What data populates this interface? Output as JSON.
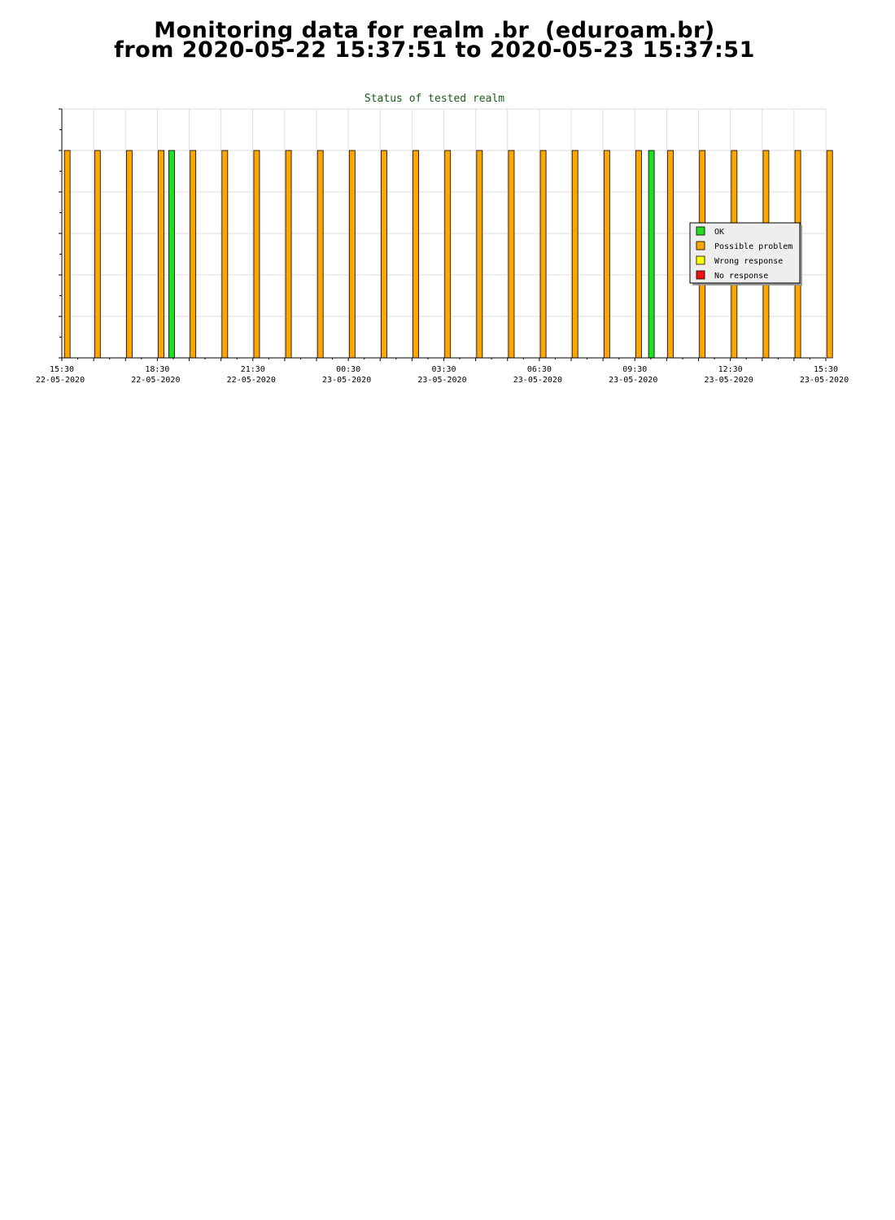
{
  "header": {
    "line1": "Monitoring data for realm .br  (eduroam.br)",
    "line2": "from 2020-05-22 15:37:51 to 2020-05-23 15:37:51"
  },
  "chart_data": {
    "type": "bar",
    "title": "Status of tested realm",
    "xlabel": "",
    "ylabel": "",
    "x_range_hours": [
      0,
      24
    ],
    "ylim": [
      0,
      6
    ],
    "grid": true,
    "legend_placement": "right",
    "x_ticks": [
      {
        "time": "15:30",
        "date": "22-05-2020",
        "h": 0
      },
      {
        "time": "18:30",
        "date": "22-05-2020",
        "h": 3
      },
      {
        "time": "21:30",
        "date": "22-05-2020",
        "h": 6
      },
      {
        "time": "00:30",
        "date": "23-05-2020",
        "h": 9
      },
      {
        "time": "03:30",
        "date": "23-05-2020",
        "h": 12
      },
      {
        "time": "06:30",
        "date": "23-05-2020",
        "h": 15
      },
      {
        "time": "09:30",
        "date": "23-05-2020",
        "h": 18
      },
      {
        "time": "12:30",
        "date": "23-05-2020",
        "h": 21
      },
      {
        "time": "15:30",
        "date": "23-05-2020",
        "h": 24
      }
    ],
    "series": [
      {
        "name": "OK",
        "color": "#22dd22"
      },
      {
        "name": "Possible problem",
        "color": "#ffa500"
      },
      {
        "name": "Wrong response",
        "color": "#ffff00"
      },
      {
        "name": "No response",
        "color": "#ee1111"
      }
    ],
    "points": [
      {
        "h": 0.17,
        "status": "Possible problem",
        "value": 5
      },
      {
        "h": 1.12,
        "status": "Possible problem",
        "value": 5
      },
      {
        "h": 2.12,
        "status": "Possible problem",
        "value": 5
      },
      {
        "h": 3.12,
        "status": "Possible problem",
        "value": 5
      },
      {
        "h": 3.45,
        "status": "OK",
        "value": 5
      },
      {
        "h": 4.12,
        "status": "Possible problem",
        "value": 5
      },
      {
        "h": 5.12,
        "status": "Possible problem",
        "value": 5
      },
      {
        "h": 6.12,
        "status": "Possible problem",
        "value": 5
      },
      {
        "h": 7.12,
        "status": "Possible problem",
        "value": 5
      },
      {
        "h": 8.12,
        "status": "Possible problem",
        "value": 5
      },
      {
        "h": 9.12,
        "status": "Possible problem",
        "value": 5
      },
      {
        "h": 10.12,
        "status": "Possible problem",
        "value": 5
      },
      {
        "h": 11.12,
        "status": "Possible problem",
        "value": 5
      },
      {
        "h": 12.12,
        "status": "Possible problem",
        "value": 5
      },
      {
        "h": 13.12,
        "status": "Possible problem",
        "value": 5
      },
      {
        "h": 14.12,
        "status": "Possible problem",
        "value": 5
      },
      {
        "h": 15.12,
        "status": "Possible problem",
        "value": 5
      },
      {
        "h": 16.12,
        "status": "Possible problem",
        "value": 5
      },
      {
        "h": 17.12,
        "status": "Possible problem",
        "value": 5
      },
      {
        "h": 18.12,
        "status": "Possible problem",
        "value": 5
      },
      {
        "h": 18.52,
        "status": "OK",
        "value": 5
      },
      {
        "h": 19.12,
        "status": "Possible problem",
        "value": 5
      },
      {
        "h": 20.12,
        "status": "Possible problem",
        "value": 5
      },
      {
        "h": 21.12,
        "status": "Possible problem",
        "value": 5
      },
      {
        "h": 22.12,
        "status": "Possible problem",
        "value": 5
      },
      {
        "h": 23.12,
        "status": "Possible problem",
        "value": 5
      },
      {
        "h": 24.12,
        "status": "Possible problem",
        "value": 5
      }
    ]
  }
}
